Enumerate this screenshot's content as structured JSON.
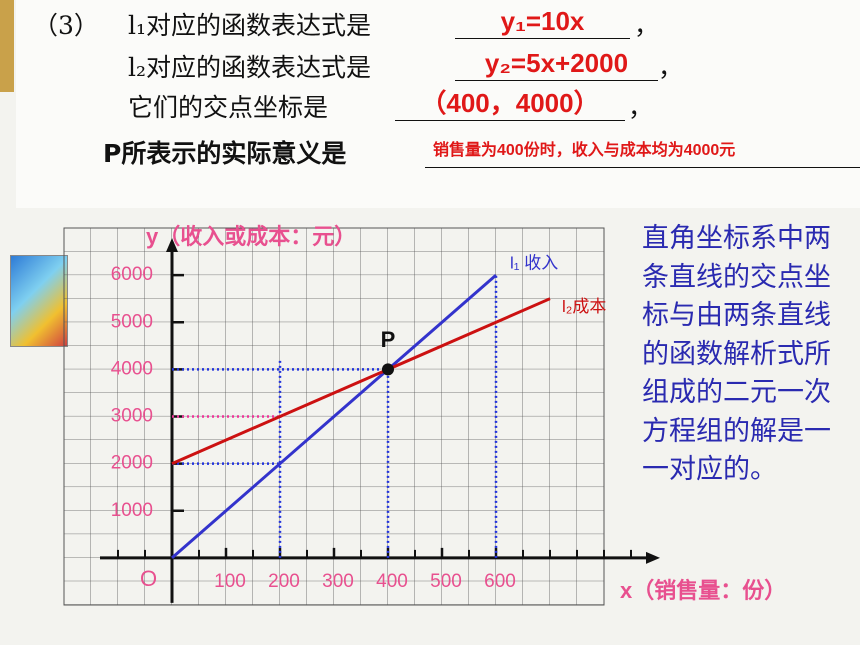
{
  "slide": {
    "q_number": "（3）",
    "q1": "l₁对应的函数表达式是",
    "a1": "y₁=10x",
    "q2": "l₂对应的函数表达式是",
    "a2": "y₂=5x+2000",
    "q3": "它们的交点坐标是",
    "a3": "（400，4000）",
    "q4": "P所表示的实际意义是",
    "a4": "销售量为400份时，收入与成本均为4000元",
    "comma": "，",
    "note": "直角坐标系中两条直线的交点坐标与由两条直线的函数解析式所组成的二元一次方程组的解是一一对应的。"
  },
  "chart_data": {
    "type": "line",
    "y_label": "y（收入或成本：元）",
    "x_label": "x（销售量：份）",
    "origin_label": "O",
    "xlim": [
      -200,
      800
    ],
    "ylim": [
      -1000,
      7000
    ],
    "xticks": [
      100,
      200,
      300,
      400,
      500,
      600
    ],
    "yticks": [
      1000,
      2000,
      3000,
      4000,
      5000,
      6000
    ],
    "series": [
      {
        "name": "l₁ 收入",
        "color": "#3333cc",
        "x": [
          0,
          600
        ],
        "values": [
          0,
          6000
        ]
      },
      {
        "name": "l₂成本",
        "color": "#cc1111",
        "x": [
          0,
          700
        ],
        "values": [
          2000,
          5500
        ]
      }
    ],
    "intersection": {
      "label": "P",
      "x": 400,
      "y": 4000
    },
    "guides": [
      {
        "color": "#2233dd",
        "x": [
          0,
          400
        ],
        "values": [
          4000,
          4000
        ]
      },
      {
        "color": "#2233dd",
        "x": [
          400,
          400
        ],
        "values": [
          0,
          4000
        ]
      },
      {
        "color": "#ee3399",
        "x": [
          0,
          200
        ],
        "values": [
          3000,
          3000
        ]
      },
      {
        "color": "#2233dd",
        "x": [
          0,
          200
        ],
        "values": [
          2000,
          2000
        ]
      },
      {
        "color": "#2233dd",
        "x": [
          200,
          200
        ],
        "values": [
          0,
          4200
        ]
      },
      {
        "color": "#2233dd",
        "x": [
          600,
          600
        ],
        "values": [
          0,
          6000
        ]
      }
    ]
  }
}
